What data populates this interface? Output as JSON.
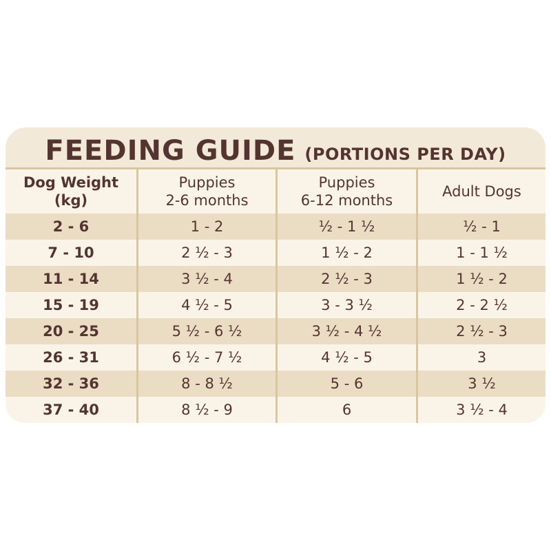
{
  "colors": {
    "page-bg": "#ffffff",
    "card-bg": "#f2e9d8",
    "row-beige": "#ebdcc4",
    "row-light": "#faf4e8",
    "line-tan": "#d8c6a0",
    "text-brown": "#543430"
  },
  "card": {
    "title": "FEEDING GUIDE",
    "title_suffix": "(PORTIONS PER DAY)"
  },
  "table": {
    "header": [
      {
        "line1": "Dog Weight",
        "line2": "(kg)"
      },
      {
        "line1": "Puppies",
        "line2": "2-6 months"
      },
      {
        "line1": "Puppies",
        "line2": "6-12 months"
      },
      {
        "line1": "Adult Dogs",
        "line2": ""
      }
    ]
  },
  "chart_data": {
    "type": "table",
    "title": "FEEDING GUIDE (PORTIONS PER DAY)",
    "columns": [
      "Dog Weight (kg)",
      "Puppies 2-6 months",
      "Puppies 6-12 months",
      "Adult Dogs"
    ],
    "rows": [
      [
        "2 - 6",
        "1 - 2",
        "½ - 1 ½",
        "½ - 1"
      ],
      [
        "7 - 10",
        "2 ½ - 3",
        "1 ½ - 2",
        "1 - 1 ½"
      ],
      [
        "11 - 14",
        "3 ½ - 4",
        "2 ½ - 3",
        "1 ½ - 2"
      ],
      [
        "15 - 19",
        "4 ½ - 5",
        "3 - 3 ½",
        "2 - 2 ½"
      ],
      [
        "20 - 25",
        "5 ½ - 6 ½",
        "3 ½ - 4 ½",
        "2 ½ - 3"
      ],
      [
        "26 - 31",
        "6 ½ - 7 ½",
        "4 ½ - 5",
        "3"
      ],
      [
        "32 - 36",
        "8 - 8 ½",
        "5 - 6",
        "3 ½"
      ],
      [
        "37 - 40",
        "8 ½ - 9",
        "6",
        "3 ½ - 4"
      ]
    ]
  }
}
